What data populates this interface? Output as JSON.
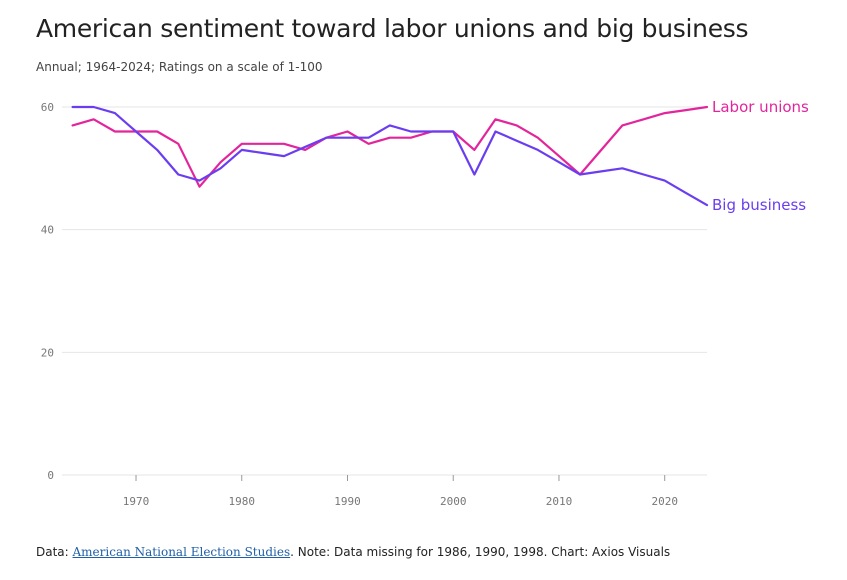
{
  "header": {
    "title": "American sentiment toward labor unions and big business",
    "subtitle": "Annual; 1964-2024; Ratings on a scale of 1-100"
  },
  "footer": {
    "prefix": "Data: ",
    "source_link": "American National Election Studies",
    "suffix": ". Note: Data missing for 1986, 1990, 1998. Chart: Axios Visuals"
  },
  "colors": {
    "labor": "#e3259c",
    "business": "#6a3ef0",
    "grid": "#e6e6e6"
  },
  "chart_data": {
    "type": "line",
    "title": "American sentiment toward labor unions and big business",
    "subtitle": "Annual; 1964-2024; Ratings on a scale of 1-100",
    "xlim": [
      1963,
      2024
    ],
    "ylim": [
      0,
      60
    ],
    "x_ticks": [
      1970,
      1980,
      1990,
      2000,
      2010,
      2020
    ],
    "y_ticks": [
      0,
      20,
      40,
      60
    ],
    "grid": true,
    "series": [
      {
        "name": "Labor unions",
        "color": "#e3259c",
        "x": [
          1964,
          1966,
          1968,
          1970,
          1972,
          1974,
          1976,
          1978,
          1980,
          1982,
          1984,
          1986,
          1988,
          1990,
          1992,
          1994,
          1996,
          1998,
          2000,
          2002,
          2004,
          2006,
          2008,
          2010,
          2012,
          2014,
          2016,
          2018,
          2020,
          2022,
          2024
        ],
        "values": [
          57,
          58,
          56,
          56,
          56,
          54,
          47,
          51,
          54,
          54,
          54,
          53,
          55,
          56,
          54,
          55,
          55,
          56,
          56,
          53,
          58,
          57,
          55,
          52,
          49,
          53,
          57,
          58,
          59,
          59.5,
          60
        ]
      },
      {
        "name": "Big business",
        "color": "#6a3ef0",
        "x": [
          1964,
          1966,
          1968,
          1970,
          1972,
          1974,
          1976,
          1978,
          1980,
          1982,
          1984,
          1986,
          1988,
          1990,
          1992,
          1994,
          1996,
          1998,
          2000,
          2002,
          2004,
          2006,
          2008,
          2010,
          2012,
          2014,
          2016,
          2018,
          2020,
          2022,
          2024
        ],
        "values": [
          60,
          60,
          59,
          56,
          53,
          49,
          48,
          50,
          53,
          52.5,
          52,
          53.5,
          55,
          55,
          55,
          57,
          56,
          56,
          56,
          49,
          56,
          54.5,
          53,
          51,
          49,
          49.5,
          50,
          49,
          48,
          46,
          44
        ]
      }
    ]
  }
}
